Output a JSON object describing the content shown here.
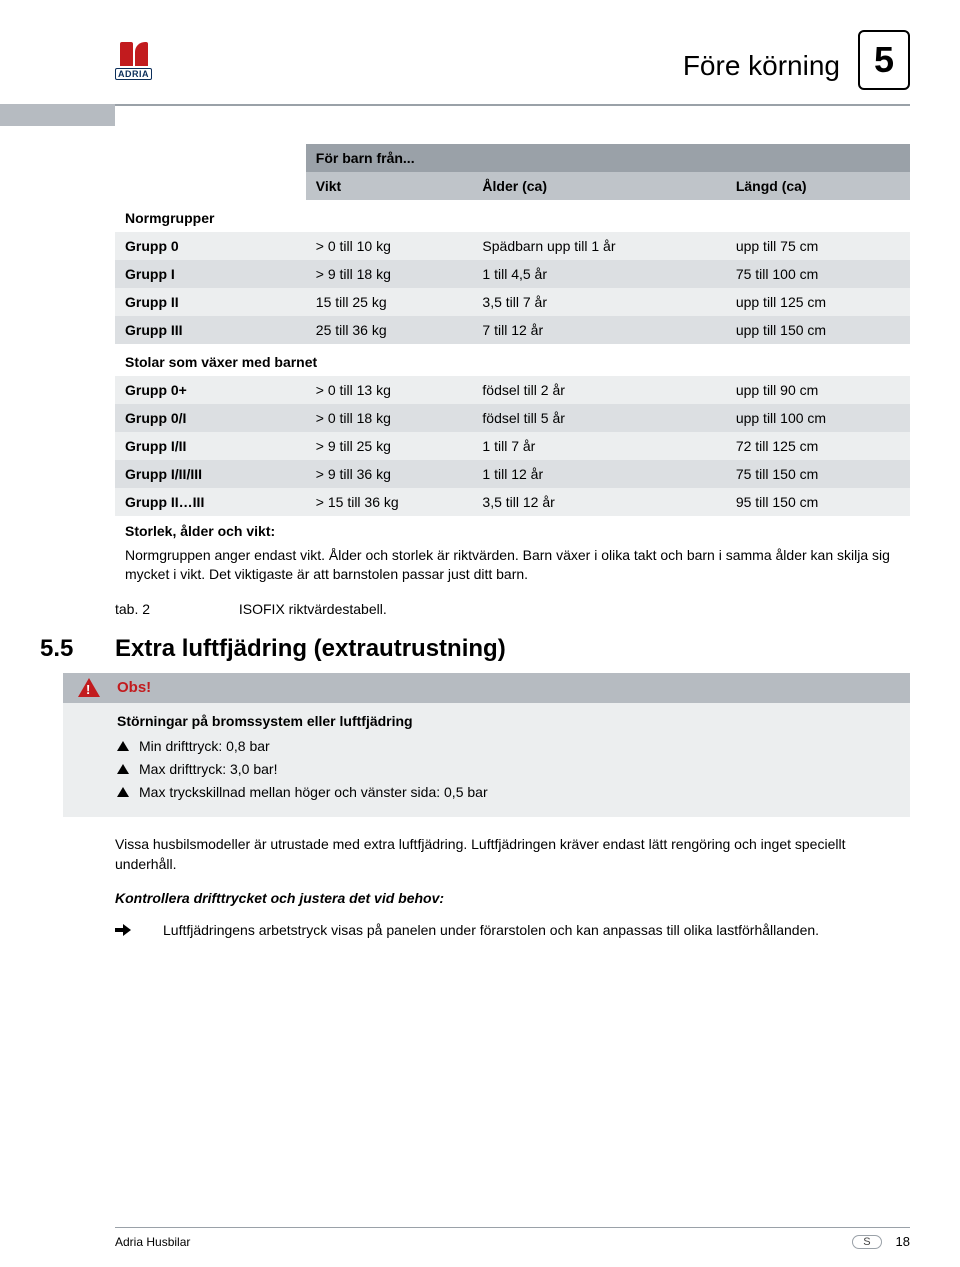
{
  "brand": {
    "name": "ADRIA"
  },
  "chapter": {
    "title": "Före körning",
    "number": "5"
  },
  "table": {
    "super_header": "För barn från...",
    "columns": [
      "",
      "Vikt",
      "Ålder (ca)",
      "Längd (ca)"
    ],
    "section1_title": "Normgrupper",
    "rows1": [
      {
        "label": "Grupp 0",
        "vikt": "> 0 till 10 kg",
        "alder": "Spädbarn upp till 1 år",
        "langd": "upp till 75 cm"
      },
      {
        "label": "Grupp I",
        "vikt": "> 9 till 18 kg",
        "alder": "1 till 4,5 år",
        "langd": "75 till 100 cm"
      },
      {
        "label": "Grupp II",
        "vikt": "15 till 25 kg",
        "alder": "3,5 till 7 år",
        "langd": "upp till 125 cm"
      },
      {
        "label": "Grupp III",
        "vikt": "25 till 36 kg",
        "alder": "7 till 12 år",
        "langd": "upp till 150 cm"
      }
    ],
    "section2_title": "Stolar som växer med barnet",
    "rows2": [
      {
        "label": "Grupp 0+",
        "vikt": "> 0 till 13 kg",
        "alder": "födsel till 2 år",
        "langd": "upp till 90 cm"
      },
      {
        "label": "Grupp 0/I",
        "vikt": "> 0 till 18 kg",
        "alder": "födsel till 5 år",
        "langd": "upp till 100 cm"
      },
      {
        "label": "Grupp I/II",
        "vikt": "> 9 till 25 kg",
        "alder": "1 till 7 år",
        "langd": "72 till 125 cm"
      },
      {
        "label": "Grupp I/II/III",
        "vikt": "> 9 till 36 kg",
        "alder": "1 till 12 år",
        "langd": "75 till 150 cm"
      },
      {
        "label": "Grupp II…III",
        "vikt": "> 15 till 36 kg",
        "alder": "3,5 till 12 år",
        "langd": "95 till 150 cm"
      }
    ],
    "note_head": "Storlek, ålder och vikt:",
    "note_body": "Normgruppen anger endast vikt. Ålder och storlek är riktvärden. Barn växer i olika takt och barn i samma ålder kan skilja sig mycket i vikt. Det viktigaste är att barnstolen passar just ditt barn.",
    "caption_label": "tab. 2",
    "caption_text": "ISOFIX riktvärdestabell."
  },
  "section": {
    "number": "5.5",
    "title": "Extra luftfjädring (extrautrustning)"
  },
  "obs": {
    "label": "Obs!",
    "title": "Störningar på bromssystem eller luftfjädring",
    "items": [
      "Min drifttryck: 0,8 bar",
      "Max drifttryck: 3,0 bar!",
      "Max tryckskillnad mellan höger och vänster sida: 0,5 bar"
    ]
  },
  "body": {
    "p1": "Vissa husbilsmodeller är utrustade med extra luftfjädring. Luftfjädringen kräver endast lätt rengöring och inget speciellt underhåll.",
    "p2": "Kontrollera drifttrycket och justera det vid behov:",
    "p3": "Luftfjädringens arbetstryck visas på panelen under förarstolen och kan anpassas till olika lastförhållanden."
  },
  "footer": {
    "left": "Adria Husbilar",
    "lang": "S",
    "page": "18"
  },
  "colors": {
    "header_bar": "#9aa1a8",
    "subheader_bar": "#bfc4c9",
    "row_light": "#eceeef",
    "row_dark": "#dcdfe2",
    "stub": "#b6bbc1",
    "accent_red": "#c21b1e"
  }
}
